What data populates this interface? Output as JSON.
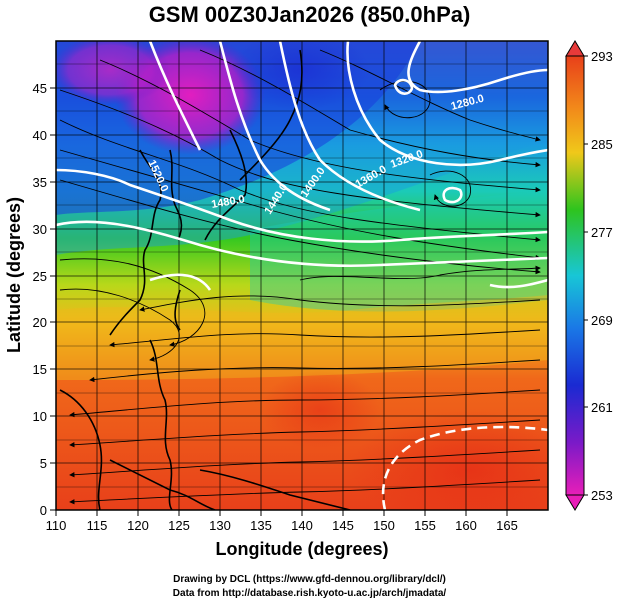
{
  "title": "GSM 00Z30Jan2026 (850.0hPa)",
  "x_axis": {
    "label": "Longitude (degrees)",
    "range": [
      110,
      170
    ],
    "ticks": [
      110,
      115,
      120,
      125,
      130,
      135,
      140,
      145,
      150,
      155,
      160,
      165
    ]
  },
  "y_axis": {
    "label": "Latitude  (degrees)",
    "range": [
      0,
      50
    ],
    "ticks": [
      0,
      5,
      10,
      15,
      20,
      25,
      30,
      35,
      40,
      45
    ]
  },
  "colorbar": {
    "min": 253,
    "max": 293,
    "tick_labels": [
      "293",
      "285",
      "277",
      "269",
      "261",
      "253"
    ]
  },
  "contour_labels": [
    "1280.0",
    "1320.0",
    "1360.0",
    "1400.0",
    "1440.0",
    "1480.0",
    "1520.0"
  ],
  "credits": {
    "line1": "Drawing by DCL (https://www.gfd-dennou.org/library/dcl/)",
    "line2": "Data from http://database.rish.kyoto-u.ac.jp/arch/jmadata/"
  },
  "colors": {
    "warm": "#e83a17",
    "orange": "#f27c1a",
    "yellow": "#d8e21a",
    "green": "#34c820",
    "cyan": "#1bc9c8",
    "blue": "#1a4be0",
    "purple": "#5a1cc4",
    "magenta": "#e820b8"
  }
}
